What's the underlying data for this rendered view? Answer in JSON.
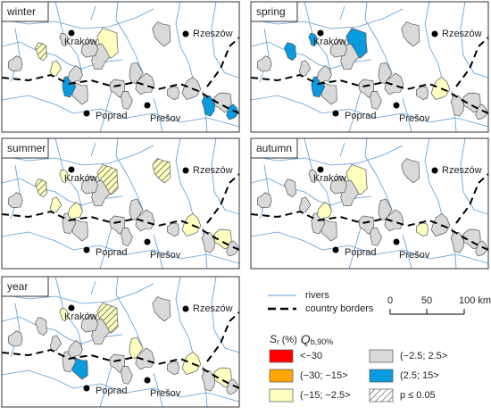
{
  "panels": [
    {
      "label": "winter"
    },
    {
      "label": "spring"
    },
    {
      "label": "summer"
    },
    {
      "label": "autumn"
    },
    {
      "label": "year"
    }
  ],
  "cities": [
    {
      "name": "Kraków"
    },
    {
      "name": "Rzeszów"
    },
    {
      "name": "Poprad"
    },
    {
      "name": "Prešov"
    }
  ],
  "legend": {
    "rivers": "rivers",
    "borders": "country borders",
    "scale": [
      "0",
      "50",
      "100 km"
    ],
    "title": {
      "s": "S",
      "s_sub": "r",
      "unit": "(%)",
      "q": "Q",
      "q_sub": "b,90%"
    },
    "classes": [
      "<−30",
      "(−30; −15>",
      "(−15; −2.5>",
      "(−2.5; 2.5>",
      "(2.5; 15>",
      "p ≤ 0.05"
    ]
  }
}
